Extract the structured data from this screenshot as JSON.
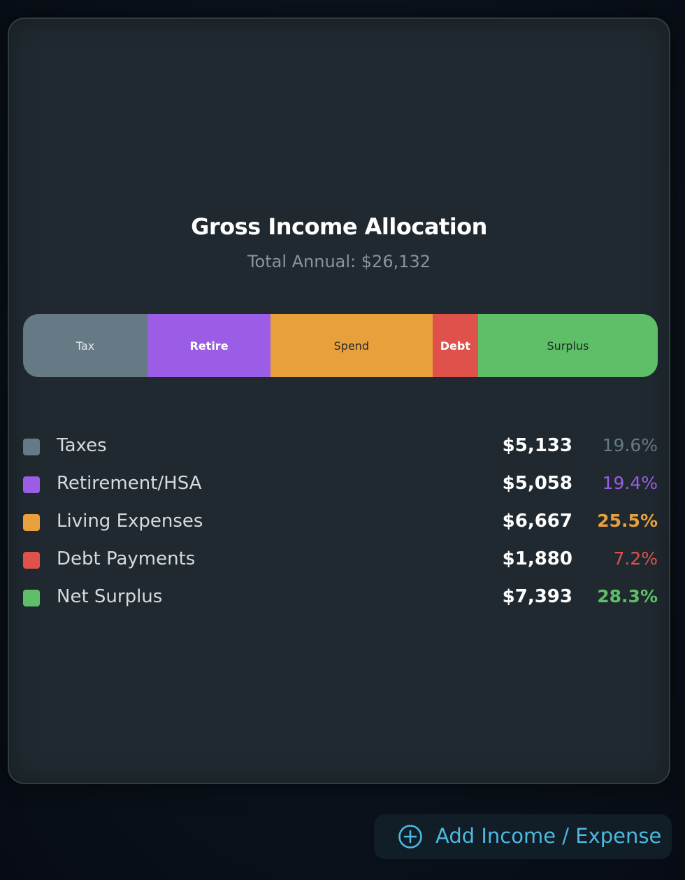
{
  "card": {
    "title": "Gross Income Allocation",
    "subtitle": "Total Annual: $26,132"
  },
  "allocation_bar": {
    "segments": [
      {
        "label": "Tax",
        "percent": 19.6,
        "color": "#667a86",
        "text_color": "#e4e8ea",
        "weight": "normal"
      },
      {
        "label": "Retire",
        "percent": 19.4,
        "color": "#9b5de5",
        "text_color": "#ffffff",
        "weight": "bold"
      },
      {
        "label": "Spend",
        "percent": 25.5,
        "color": "#e8a03c",
        "text_color": "#2a2a2a",
        "weight": "normal"
      },
      {
        "label": "Debt",
        "percent": 7.2,
        "color": "#df524c",
        "text_color": "#ffffff",
        "weight": "bold"
      },
      {
        "label": "Surplus",
        "percent": 28.3,
        "color": "#5fbf69",
        "text_color": "#1f2a1f",
        "weight": "normal"
      }
    ]
  },
  "legend": {
    "items": [
      {
        "label": "Taxes",
        "amount": "$5,133",
        "percent": "19.6%",
        "color": "#667a86",
        "pct_weight": "normal"
      },
      {
        "label": "Retirement/HSA",
        "amount": "$5,058",
        "percent": "19.4%",
        "color": "#9b5de5",
        "pct_weight": "normal"
      },
      {
        "label": "Living Expenses",
        "amount": "$6,667",
        "percent": "25.5%",
        "color": "#e8a03c",
        "pct_weight": "bold"
      },
      {
        "label": "Debt Payments",
        "amount": "$1,880",
        "percent": "7.2%",
        "color": "#df524c",
        "pct_weight": "normal"
      },
      {
        "label": "Net Surplus",
        "amount": "$7,393",
        "percent": "28.3%",
        "color": "#5fbf69",
        "pct_weight": "bold"
      }
    ]
  },
  "add_button": {
    "label": "Add Income / Expense",
    "icon": "plus-circle-icon",
    "color": "#4db8e0"
  }
}
